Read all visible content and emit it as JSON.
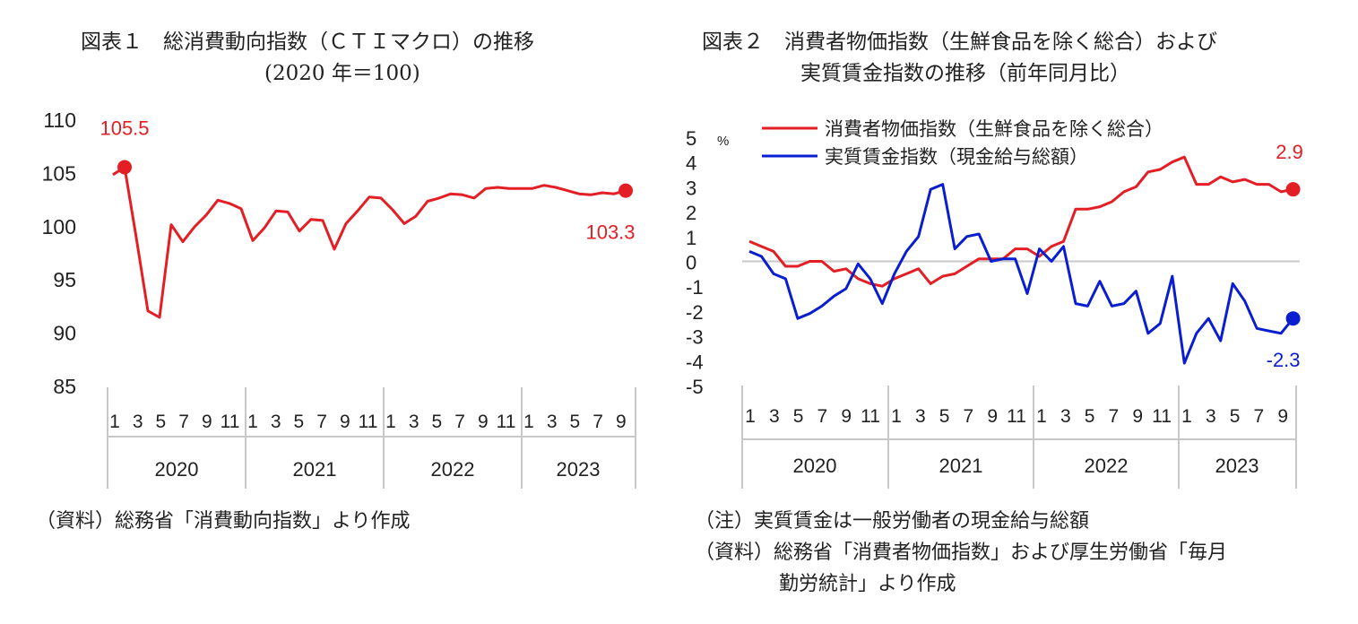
{
  "figure1": {
    "title_line1": "図表１　総消費動向指数（ＣＴＩマクロ）の推移",
    "title_line2": "(2020 年＝100)",
    "source": "（資料）総務省「消費動向指数」より作成"
  },
  "figure2": {
    "title_line1": "図表２　消費者物価指数（生鮮食品を除く総合）および",
    "title_line2": "実質賃金指数の推移（前年同月比）",
    "note": "（注）実質賃金は一般労働者の現金給与総額",
    "source_line1": "（資料）総務省「消費者物価指数」および厚生労働省「毎月",
    "source_line2": "勤労統計」より作成"
  },
  "chart_data": [
    {
      "type": "line",
      "title": "",
      "yticks": [
        "85",
        "90",
        "95",
        "100",
        "105",
        "110"
      ],
      "ylim": [
        85,
        110
      ],
      "month_labels": [
        "1",
        "3",
        "5",
        "7",
        "9",
        "11",
        "1",
        "3",
        "5",
        "7",
        "9",
        "11",
        "1",
        "3",
        "5",
        "7",
        "9",
        "11",
        "1",
        "3",
        "5",
        "7",
        "9"
      ],
      "years": [
        "2020",
        "2021",
        "2022",
        "2023"
      ],
      "series": [
        {
          "color": "#e31e24",
          "values": [
            104.8,
            105.5,
            98.9,
            92.0,
            91.4,
            100.1,
            98.5,
            99.9,
            101.0,
            102.4,
            102.1,
            101.6,
            98.6,
            99.8,
            101.4,
            101.3,
            99.5,
            100.6,
            100.5,
            97.8,
            100.2,
            101.4,
            102.7,
            102.6,
            101.5,
            100.2,
            100.9,
            102.3,
            102.6,
            103.0,
            102.9,
            102.6,
            103.5,
            103.6,
            103.5,
            103.5,
            103.5,
            103.8,
            103.6,
            103.3,
            103.0,
            102.9,
            103.1,
            103.0,
            103.3
          ],
          "labels": [
            {
              "index": 1,
              "text": "105.5",
              "pos": "above"
            },
            {
              "index": 44,
              "text": "103.3",
              "pos": "below"
            }
          ]
        }
      ]
    },
    {
      "type": "line",
      "title": "",
      "yticks": [
        "-5",
        "-4",
        "-3",
        "-2",
        "-1",
        "0",
        "1",
        "2",
        "3",
        "4",
        "5"
      ],
      "yunit": "%",
      "ylim": [
        -5,
        5
      ],
      "month_labels": [
        "1",
        "3",
        "5",
        "7",
        "9",
        "11",
        "1",
        "3",
        "5",
        "7",
        "9",
        "11",
        "1",
        "3",
        "5",
        "7",
        "9",
        "11",
        "1",
        "3",
        "5",
        "7",
        "9"
      ],
      "years": [
        "2020",
        "2021",
        "2022",
        "2023"
      ],
      "legend_position": "top",
      "series": [
        {
          "name": "消費者物価指数（生鮮食品を除く総合）",
          "color": "#e31e24",
          "values": [
            0.8,
            0.6,
            0.4,
            -0.2,
            -0.2,
            0.0,
            0.0,
            -0.4,
            -0.3,
            -0.7,
            -0.9,
            -1.0,
            -0.7,
            -0.5,
            -0.3,
            -0.9,
            -0.6,
            -0.5,
            -0.2,
            0.1,
            0.1,
            0.1,
            0.5,
            0.5,
            0.2,
            0.6,
            0.8,
            2.1,
            2.1,
            2.2,
            2.4,
            2.8,
            3.0,
            3.6,
            3.7,
            4.0,
            4.2,
            3.1,
            3.1,
            3.4,
            3.2,
            3.3,
            3.1,
            3.1,
            2.8,
            2.9
          ],
          "labels": [
            {
              "index": 45,
              "text": "2.9",
              "pos": "above"
            }
          ]
        },
        {
          "name": "実質賃金指数（現金給与総額）",
          "color": "#0a1ed1",
          "values": [
            0.4,
            0.2,
            -0.5,
            -0.7,
            -2.3,
            -2.1,
            -1.8,
            -1.4,
            -1.1,
            -0.1,
            -0.7,
            -1.7,
            -0.5,
            0.4,
            1.0,
            2.9,
            3.1,
            0.5,
            1.0,
            1.1,
            0.0,
            0.1,
            0.1,
            -1.3,
            0.5,
            0.0,
            0.6,
            -1.7,
            -1.8,
            -0.8,
            -1.8,
            -1.7,
            -1.2,
            -2.9,
            -2.5,
            -0.6,
            -4.1,
            -2.9,
            -2.3,
            -3.2,
            -0.9,
            -1.6,
            -2.7,
            -2.8,
            -2.9,
            -2.3
          ],
          "labels": [
            {
              "index": 45,
              "text": "-2.3",
              "pos": "below"
            }
          ]
        }
      ]
    }
  ]
}
